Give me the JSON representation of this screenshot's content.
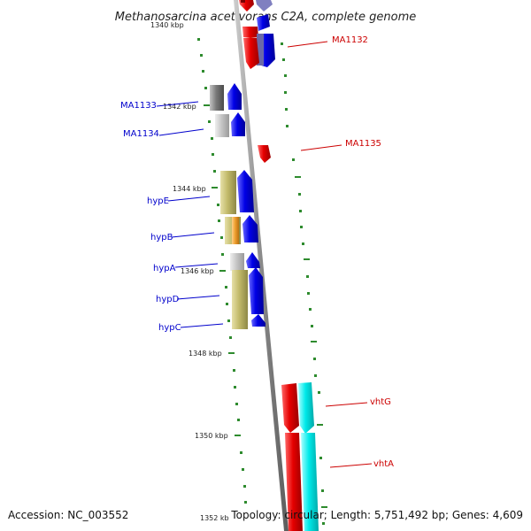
{
  "title": "Methanosarcina acetivorans C2A, complete genome",
  "accession": "Accession: NC_003552",
  "topology": "Topology: circular; Length: 5,751,492 bp; Genes: 4,609",
  "kbp_labels": [
    "1340 kbp",
    "1342 kbp",
    "1344 kbp",
    "1346 kbp",
    "1348 kbp",
    "1350 kbp",
    "1352 kb"
  ],
  "genes": {
    "MA1132": "MA1132",
    "MA1133": "MA1133",
    "MA1134": "MA1134",
    "MA1135": "MA1135",
    "hypE": "hypE",
    "hypB": "hypB",
    "hypA": "hypA",
    "hypD": "hypD",
    "hypC": "hypC",
    "vhtG": "vhtG",
    "vhtA": "vhtA"
  },
  "colors": {
    "backbone": "#8a8a8a",
    "tick": "#2e8b2e",
    "forward_strand": "#e00000",
    "reverse_strand": "#0000e0",
    "cyan_track": "#00e8e8",
    "olive_track": "#c2ba6a",
    "grey_track": "#8c8c8c",
    "orange_track": "#f0a030",
    "red_label": "#cc0000",
    "blue_label": "#0000cc"
  }
}
